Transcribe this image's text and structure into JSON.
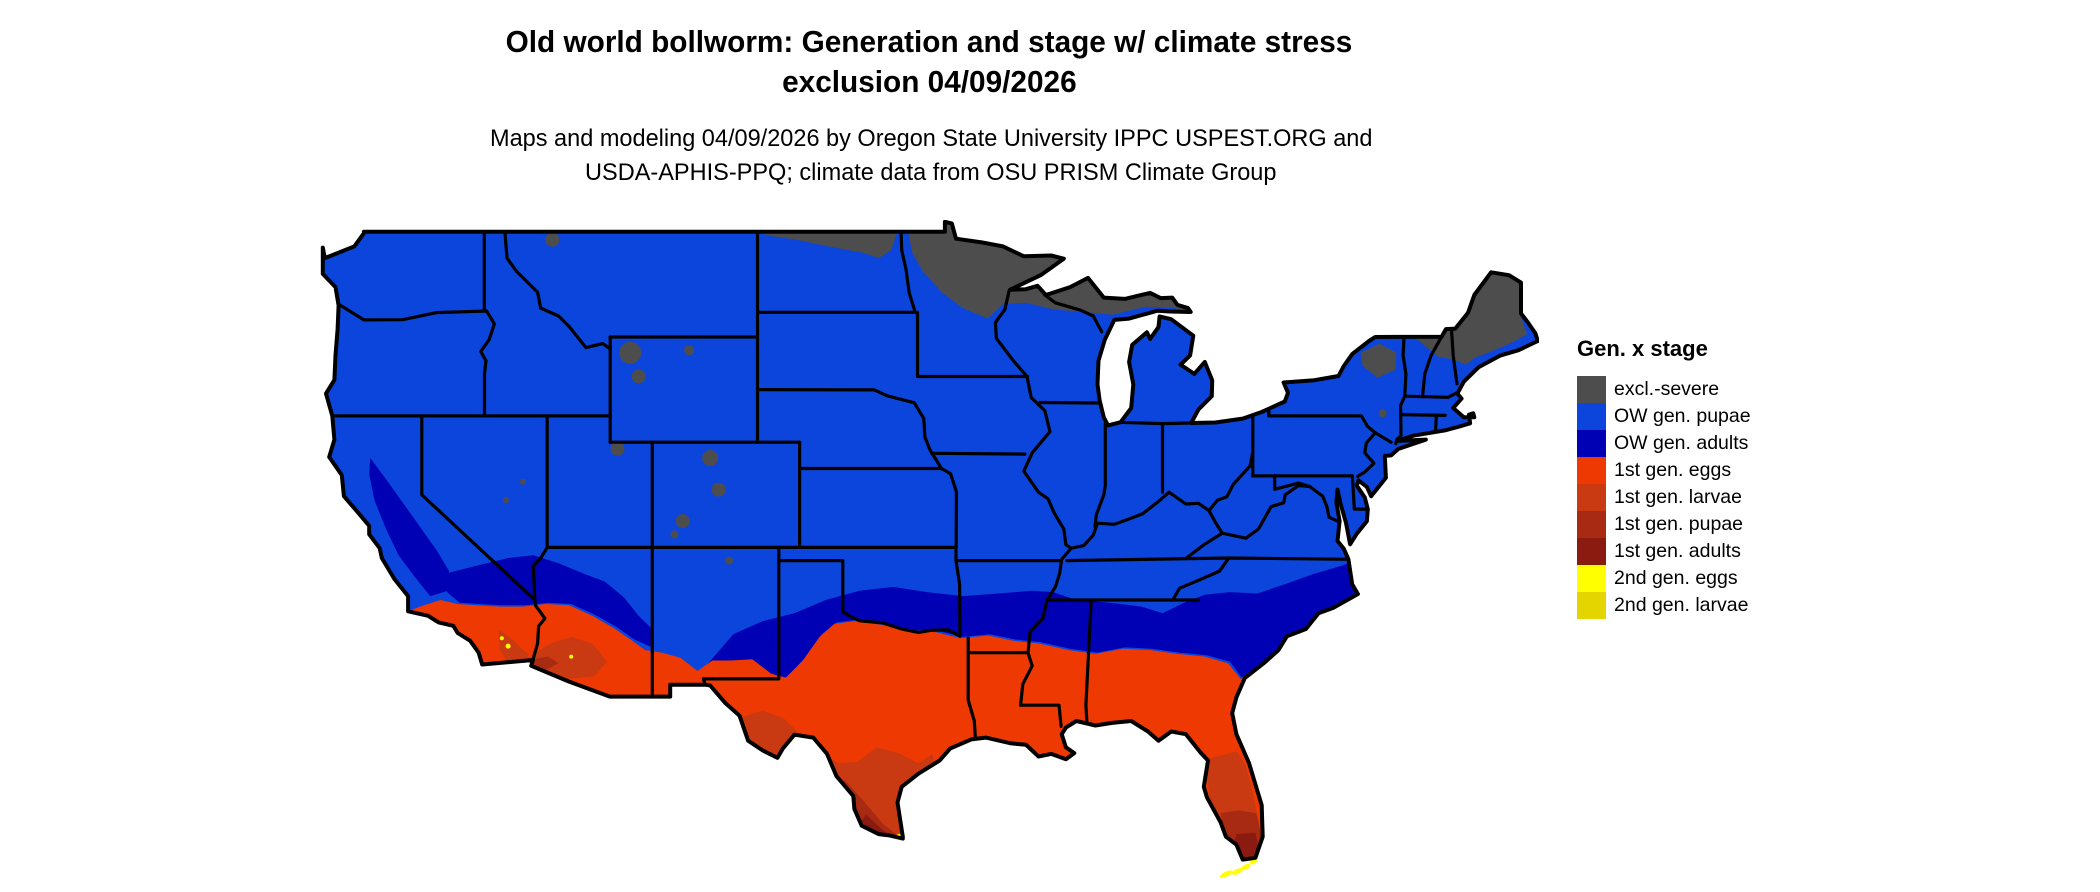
{
  "title": {
    "line1": "Old world bollworm: Generation and stage w/ climate stress",
    "line2": "exclusion 04/09/2026"
  },
  "subtitle": {
    "line1": "Maps and modeling 04/09/2026 by Oregon State University IPPC USPEST.ORG and",
    "line2": "USDA-APHIS-PPQ; climate data from OSU PRISM Climate Group"
  },
  "legend": {
    "title": "Gen. x stage",
    "items": [
      {
        "key": "excl",
        "label": "excl.-severe",
        "color": "#4d4d4d"
      },
      {
        "key": "ow_pupae",
        "label": "OW gen. pupae",
        "color": "#0b45dc"
      },
      {
        "key": "ow_adults",
        "label": "OW gen. adults",
        "color": "#0000b4"
      },
      {
        "key": "g1_eggs",
        "label": "1st gen. eggs",
        "color": "#ee3a02"
      },
      {
        "key": "g1_larvae",
        "label": "1st gen. larvae",
        "color": "#c93a12"
      },
      {
        "key": "g1_pupae",
        "label": "1st gen. pupae",
        "color": "#a82a12"
      },
      {
        "key": "g1_adults",
        "label": "1st gen. adults",
        "color": "#8b1a10"
      },
      {
        "key": "g2_eggs",
        "label": "2nd gen. eggs",
        "color": "#ffff00"
      },
      {
        "key": "g2_larvae",
        "label": "2nd gen. larvae",
        "color": "#e4d400"
      }
    ]
  },
  "map": {
    "region_label": "Contiguous United States"
  }
}
